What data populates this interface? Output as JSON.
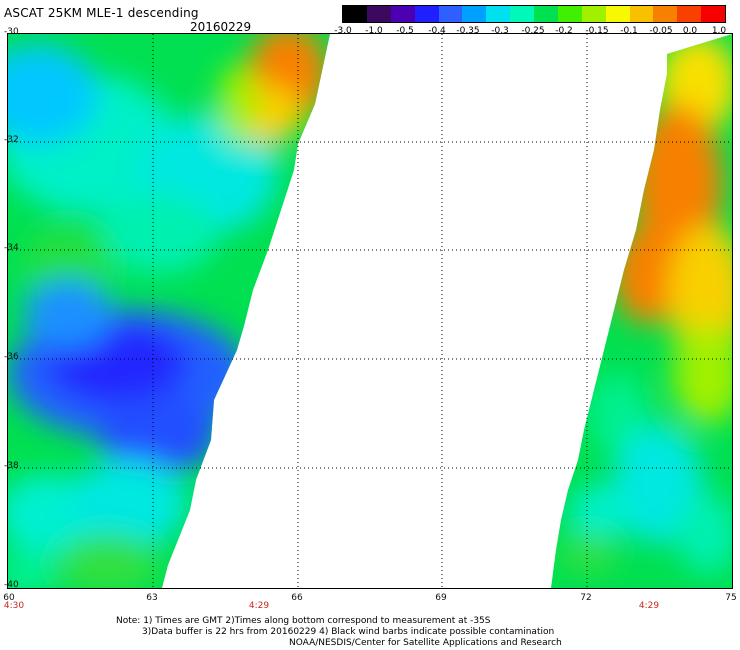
{
  "title": "ASCAT 25KM MLE-1 descending",
  "date": "20160229",
  "colorbar": {
    "ticks": [
      "-3.0",
      "-1.0",
      "-0.5",
      "-0.4",
      "-0.35",
      "-0.3",
      "-0.25",
      "-0.2",
      "-0.15",
      "-0.1",
      "-0.05",
      "0.0",
      "1.0"
    ],
    "colors": [
      "#000000",
      "#3b0a5e",
      "#4b00b4",
      "#2020ff",
      "#2f5fff",
      "#00a0ff",
      "#00e0f0",
      "#00f8b8",
      "#00e050",
      "#40f000",
      "#a0f000",
      "#f8f800",
      "#f8c000",
      "#f88000",
      "#f84000",
      "#f80000"
    ]
  },
  "y_axis": {
    "labels": [
      "-30",
      "-32",
      "-34",
      "-36",
      "-38",
      "-40"
    ]
  },
  "x_axis": {
    "labels": [
      "60",
      "63",
      "66",
      "69",
      "72",
      "75"
    ]
  },
  "times": [
    "4:30",
    "4:29",
    "4:29"
  ],
  "notes": {
    "line1": "Note: 1) Times are GMT 2)Times along bottom correspond to measurement at -35S",
    "line2": "3)Data buffer is 22 hrs from 20160229 4) Black wind barbs indicate possible contamination",
    "line3": "NOAA/NESDIS/Center for Satellite Applications and Research"
  }
}
